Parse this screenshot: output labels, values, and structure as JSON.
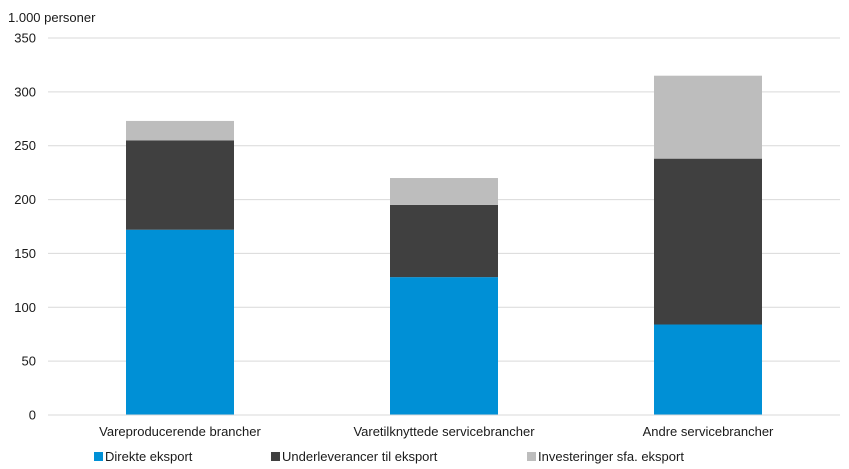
{
  "chart_data": {
    "type": "bar",
    "stacked": true,
    "unit_label": "1.000 personer",
    "categories": [
      "Vareproducerende brancher",
      "Varetilknyttede servicebrancher",
      "Andre servicebrancher"
    ],
    "series": [
      {
        "name": "Direkte eksport",
        "color": "#0090d6",
        "values": [
          172,
          128,
          84
        ]
      },
      {
        "name": "Underleverancer til eksport",
        "color": "#404040",
        "values": [
          83,
          67,
          154
        ]
      },
      {
        "name": "Investeringer sfa. eksport",
        "color": "#bdbdbd",
        "values": [
          18,
          25,
          77
        ]
      }
    ],
    "yticks": [
      0,
      50,
      100,
      150,
      200,
      250,
      300,
      350
    ],
    "ylim": [
      0,
      350
    ],
    "grid": true,
    "legend_position": "bottom"
  }
}
